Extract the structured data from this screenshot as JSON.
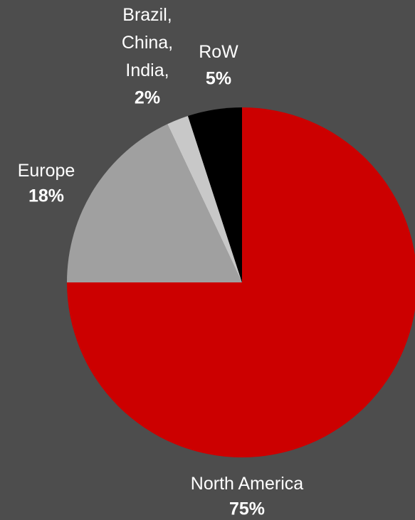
{
  "chart_data": {
    "type": "pie",
    "categories": [
      "North America",
      "Europe",
      "Brazil, China, India,",
      "RoW"
    ],
    "values": [
      75,
      18,
      2,
      5
    ],
    "value_labels": [
      "75%",
      "18%",
      "2%",
      "5%"
    ],
    "colors": [
      "#cc0000",
      "#a0a0a0",
      "#c8c8c8",
      "#000000"
    ]
  }
}
